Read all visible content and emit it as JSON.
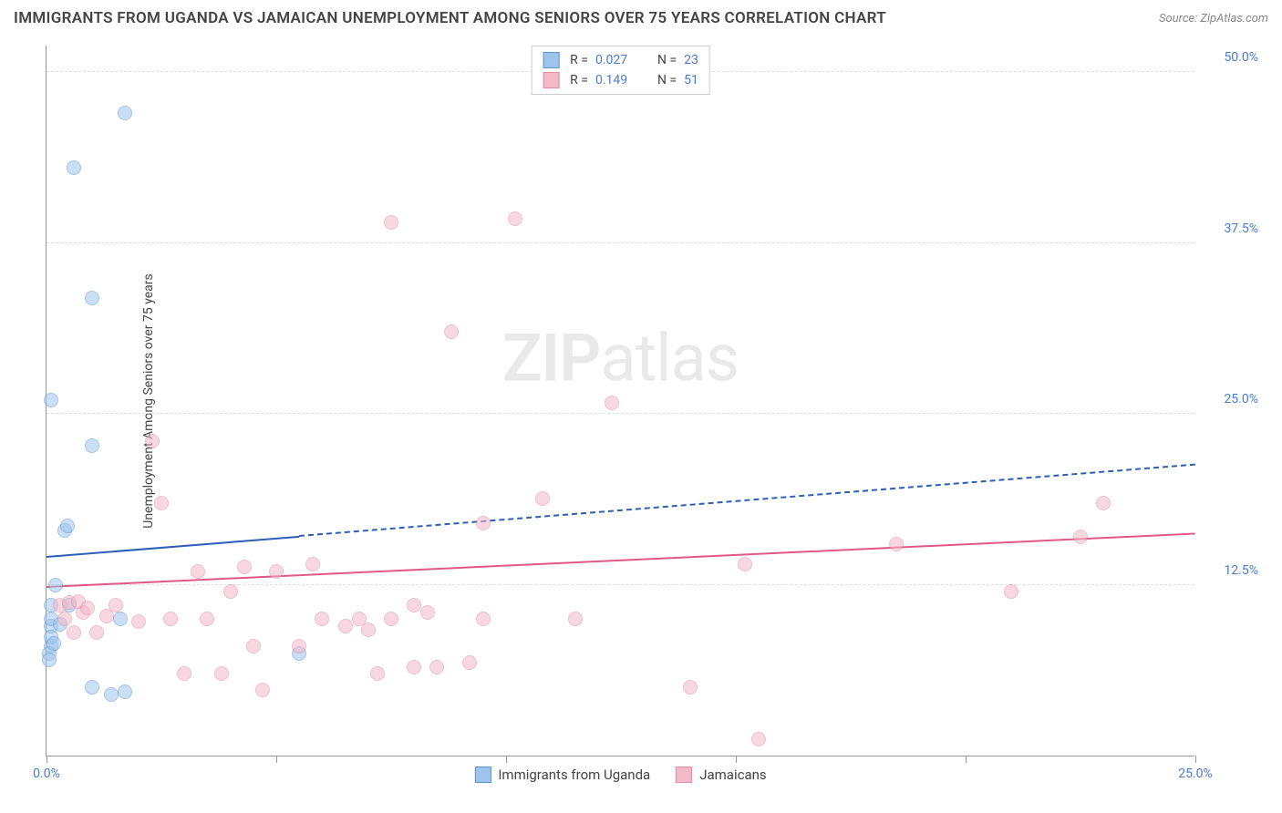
{
  "title": "IMMIGRANTS FROM UGANDA VS JAMAICAN UNEMPLOYMENT AMONG SENIORS OVER 75 YEARS CORRELATION CHART",
  "source_label": "Source: ZipAtlas.com",
  "y_axis_label": "Unemployment Among Seniors over 75 years",
  "watermark_bold": "ZIP",
  "watermark_rest": "atlas",
  "chart": {
    "type": "scatter",
    "background_color": "#ffffff",
    "grid_color": "#dddddd",
    "axis_color": "#999999",
    "tick_label_color": "#4a7bd0",
    "xlim": [
      0,
      25
    ],
    "ylim": [
      0,
      52
    ],
    "x_ticks": [
      0,
      5,
      10,
      15,
      20,
      25
    ],
    "x_tick_labels": [
      "0.0%",
      "",
      "",
      "",
      "",
      "25.0%"
    ],
    "y_ticks": [
      12.5,
      25.0,
      37.5,
      50.0
    ],
    "y_tick_labels": [
      "12.5%",
      "25.0%",
      "37.5%",
      "50.0%"
    ],
    "series": [
      {
        "name": "Immigrants from Uganda",
        "fill_color": "#9fc4ec",
        "stroke_color": "#5a94d8",
        "fill_opacity": 0.55,
        "marker_radius": 8,
        "trend": {
          "color": "#2c5fb5",
          "width": 2,
          "y_start": 14.5,
          "y_end": 21.2,
          "solid_until_x": 5.5
        },
        "stats": {
          "R": "0.027",
          "N": "23"
        },
        "points": [
          {
            "x": 0.1,
            "y": 8.0
          },
          {
            "x": 0.1,
            "y": 9.5
          },
          {
            "x": 0.1,
            "y": 10.0
          },
          {
            "x": 0.1,
            "y": 11.0
          },
          {
            "x": 0.2,
            "y": 12.5
          },
          {
            "x": 0.1,
            "y": 8.7
          },
          {
            "x": 0.3,
            "y": 9.6
          },
          {
            "x": 0.05,
            "y": 7.5
          },
          {
            "x": 0.05,
            "y": 7.0
          },
          {
            "x": 0.4,
            "y": 16.5
          },
          {
            "x": 0.45,
            "y": 16.8
          },
          {
            "x": 0.1,
            "y": 26.0
          },
          {
            "x": 1.0,
            "y": 22.7
          },
          {
            "x": 0.6,
            "y": 43.0
          },
          {
            "x": 1.0,
            "y": 33.5
          },
          {
            "x": 1.7,
            "y": 47.0
          },
          {
            "x": 1.0,
            "y": 5.0
          },
          {
            "x": 1.4,
            "y": 4.5
          },
          {
            "x": 1.7,
            "y": 4.7
          },
          {
            "x": 1.6,
            "y": 10.0
          },
          {
            "x": 5.5,
            "y": 7.5
          },
          {
            "x": 0.15,
            "y": 8.2
          },
          {
            "x": 0.5,
            "y": 11.0
          }
        ]
      },
      {
        "name": "Jamaicans",
        "fill_color": "#f2b9c8",
        "stroke_color": "#e48aa5",
        "fill_opacity": 0.55,
        "marker_radius": 8,
        "trend": {
          "color": "#e05885",
          "width": 2,
          "y_start": 12.3,
          "y_end": 16.2,
          "solid_until_x": 25
        },
        "stats": {
          "R": "0.149",
          "N": "51"
        },
        "points": [
          {
            "x": 0.3,
            "y": 11.0
          },
          {
            "x": 0.5,
            "y": 11.2
          },
          {
            "x": 0.8,
            "y": 10.5
          },
          {
            "x": 0.7,
            "y": 11.3
          },
          {
            "x": 0.4,
            "y": 10.0
          },
          {
            "x": 0.9,
            "y": 10.8
          },
          {
            "x": 1.1,
            "y": 9.0
          },
          {
            "x": 1.5,
            "y": 11.0
          },
          {
            "x": 2.0,
            "y": 9.8
          },
          {
            "x": 2.3,
            "y": 23.0
          },
          {
            "x": 2.5,
            "y": 18.5
          },
          {
            "x": 2.7,
            "y": 10.0
          },
          {
            "x": 3.0,
            "y": 6.0
          },
          {
            "x": 3.3,
            "y": 13.5
          },
          {
            "x": 3.5,
            "y": 10.0
          },
          {
            "x": 3.8,
            "y": 6.0
          },
          {
            "x": 4.0,
            "y": 12.0
          },
          {
            "x": 4.3,
            "y": 13.8
          },
          {
            "x": 4.5,
            "y": 8.0
          },
          {
            "x": 4.7,
            "y": 4.8
          },
          {
            "x": 5.0,
            "y": 13.5
          },
          {
            "x": 5.5,
            "y": 8.0
          },
          {
            "x": 5.8,
            "y": 14.0
          },
          {
            "x": 6.0,
            "y": 10.0
          },
          {
            "x": 6.5,
            "y": 9.5
          },
          {
            "x": 6.8,
            "y": 10.0
          },
          {
            "x": 7.0,
            "y": 9.2
          },
          {
            "x": 7.2,
            "y": 6.0
          },
          {
            "x": 7.5,
            "y": 10.0
          },
          {
            "x": 7.5,
            "y": 39.0
          },
          {
            "x": 8.0,
            "y": 6.5
          },
          {
            "x": 8.0,
            "y": 11.0
          },
          {
            "x": 8.3,
            "y": 10.5
          },
          {
            "x": 8.5,
            "y": 6.5
          },
          {
            "x": 8.8,
            "y": 31.0
          },
          {
            "x": 9.2,
            "y": 6.8
          },
          {
            "x": 9.5,
            "y": 17.0
          },
          {
            "x": 9.5,
            "y": 10.0
          },
          {
            "x": 10.2,
            "y": 39.3
          },
          {
            "x": 10.8,
            "y": 18.8
          },
          {
            "x": 11.5,
            "y": 10.0
          },
          {
            "x": 12.3,
            "y": 25.8
          },
          {
            "x": 14.0,
            "y": 5.0
          },
          {
            "x": 15.2,
            "y": 14.0
          },
          {
            "x": 15.5,
            "y": 1.2
          },
          {
            "x": 18.5,
            "y": 15.5
          },
          {
            "x": 21.0,
            "y": 12.0
          },
          {
            "x": 22.5,
            "y": 16.0
          },
          {
            "x": 23.0,
            "y": 18.5
          },
          {
            "x": 1.3,
            "y": 10.2
          },
          {
            "x": 0.6,
            "y": 9.0
          }
        ]
      }
    ]
  },
  "legend_bottom": [
    {
      "label": "Immigrants from Uganda",
      "fill": "#9fc4ec",
      "stroke": "#5a94d8"
    },
    {
      "label": "Jamaicans",
      "fill": "#f2b9c8",
      "stroke": "#e48aa5"
    }
  ]
}
